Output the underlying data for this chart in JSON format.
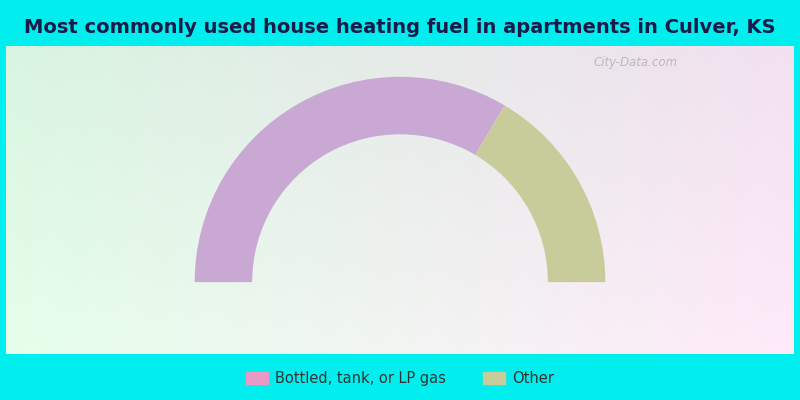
{
  "title": "Most commonly used house heating fuel in apartments in Culver, KS",
  "segments": [
    {
      "label": "Bottled, tank, or LP gas",
      "value": 67.0,
      "color": "#C9A8D4"
    },
    {
      "label": "Other",
      "value": 33.0,
      "color": "#C8CC9A"
    }
  ],
  "legend_marker_colors": [
    "#E899C4",
    "#C8CC9A"
  ],
  "bg_cyan": "#00EEEE",
  "title_fontsize": 14,
  "legend_fontsize": 10.5,
  "watermark": "City-Data.com",
  "outer_r": 1.0,
  "inner_r": 0.72,
  "gradient_colors_left": "#c8e8c8",
  "gradient_colors_right": "#e8e8f8",
  "gradient_colors_center": "#f5f5ff"
}
